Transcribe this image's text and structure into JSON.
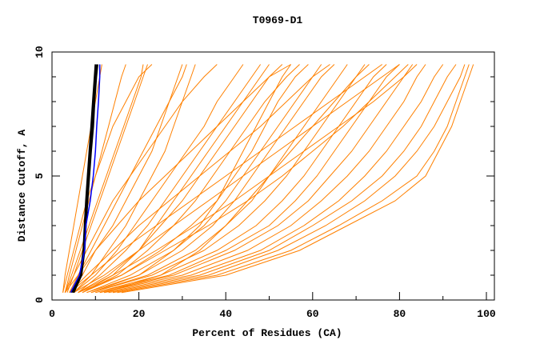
{
  "chart_data": {
    "type": "line",
    "title": "T0969-D1",
    "xlabel": "Percent of Residues (CA)",
    "ylabel": "Distance Cutoff, A",
    "xlim": [
      0,
      102
    ],
    "ylim": [
      0,
      10
    ],
    "xticks": [
      "0",
      "20",
      "40",
      "60",
      "80",
      "100"
    ],
    "xtick_values": [
      0,
      20,
      40,
      60,
      80,
      100
    ],
    "yticks": [
      "0",
      "5",
      "10"
    ],
    "ytick_values": [
      0,
      5,
      10
    ],
    "grid": false,
    "colors": {
      "models": "#ff8000",
      "highlight": "#000000",
      "reference": "#0000ff"
    },
    "cutoffs": [
      0.3,
      1,
      2,
      3,
      4,
      5,
      6,
      7,
      8,
      9,
      9.5
    ],
    "series_models": [
      [
        2.5,
        3,
        4,
        5,
        6,
        7,
        8,
        9,
        10,
        11,
        11.5
      ],
      [
        3,
        4,
        5.5,
        7,
        8.5,
        10,
        11.5,
        13,
        14.5,
        16,
        17
      ],
      [
        3,
        5,
        7,
        9,
        11,
        13,
        15,
        17,
        19,
        21,
        22
      ],
      [
        4,
        6,
        9,
        12,
        15,
        18,
        21,
        24,
        27,
        30,
        31
      ],
      [
        4,
        7,
        10,
        14,
        17,
        20,
        23,
        25,
        27,
        29,
        30
      ],
      [
        5,
        9,
        13,
        17,
        20,
        23,
        26,
        28,
        30,
        32,
        33
      ],
      [
        5,
        10,
        15,
        19,
        23,
        27,
        31,
        35,
        38,
        42,
        44
      ],
      [
        6,
        11,
        17,
        22,
        26,
        30,
        34,
        38,
        42,
        46,
        48
      ],
      [
        6,
        13,
        20,
        25,
        30,
        34,
        38,
        42,
        46,
        50,
        53
      ],
      [
        7,
        15,
        22,
        28,
        33,
        37,
        41,
        45,
        49,
        54,
        57
      ],
      [
        7,
        16,
        25,
        32,
        38,
        42,
        46,
        49,
        52,
        56,
        59
      ],
      [
        8,
        18,
        28,
        35,
        40,
        44,
        48,
        52,
        56,
        60,
        62
      ],
      [
        8,
        20,
        30,
        37,
        42,
        46,
        50,
        54,
        58,
        62,
        65
      ],
      [
        9,
        22,
        33,
        40,
        46,
        50,
        54,
        58,
        62,
        66,
        68
      ],
      [
        9,
        23,
        35,
        43,
        49,
        54,
        58,
        62,
        66,
        70,
        73
      ],
      [
        10,
        25,
        38,
        47,
        53,
        58,
        62,
        66,
        70,
        74,
        77
      ],
      [
        10,
        27,
        40,
        50,
        56,
        61,
        65,
        69,
        73,
        77,
        80
      ],
      [
        11,
        28,
        42,
        52,
        59,
        64,
        69,
        73,
        77,
        81,
        83
      ],
      [
        11,
        30,
        45,
        55,
        62,
        68,
        73,
        77,
        81,
        84,
        86
      ],
      [
        12,
        32,
        48,
        58,
        66,
        72,
        77,
        81,
        85,
        88,
        90
      ],
      [
        13,
        34,
        50,
        60,
        69,
        76,
        81,
        85,
        88,
        91,
        93
      ],
      [
        14,
        36,
        52,
        63,
        72,
        79,
        84,
        88,
        91,
        94,
        95
      ],
      [
        15,
        38,
        55,
        66,
        76,
        84,
        88,
        91,
        93,
        95,
        96
      ],
      [
        16,
        40,
        57,
        68,
        79,
        86,
        89,
        92,
        94,
        96,
        97
      ],
      [
        3,
        6,
        10,
        15,
        20,
        26,
        32,
        38,
        44,
        50,
        55
      ],
      [
        4,
        8,
        14,
        20,
        27,
        34,
        41,
        48,
        54,
        60,
        64
      ],
      [
        5,
        12,
        20,
        28,
        36,
        44,
        52,
        60,
        68,
        76,
        80
      ],
      [
        6,
        14,
        24,
        33,
        42,
        50,
        58,
        66,
        74,
        81,
        84
      ],
      [
        2.5,
        3.5,
        5,
        6.5,
        8,
        10,
        12,
        14,
        17,
        20,
        23
      ],
      [
        3,
        4.5,
        6.5,
        8.5,
        10.5,
        12.5,
        14.5,
        16.5,
        18.5,
        20.5,
        21
      ],
      [
        7,
        14,
        20,
        24,
        28,
        32,
        36,
        40,
        44,
        48,
        50
      ],
      [
        9,
        20,
        28,
        34,
        38,
        41,
        44,
        47,
        50,
        53,
        55
      ],
      [
        12,
        25,
        34,
        40,
        45,
        50,
        55,
        60,
        65,
        70,
        72
      ],
      [
        4,
        9,
        16,
        24,
        32,
        40,
        48,
        56,
        64,
        72,
        76
      ],
      [
        3.5,
        5,
        8,
        11,
        14,
        18,
        22,
        26,
        30,
        35,
        38
      ],
      [
        6,
        16,
        26,
        36,
        45,
        53,
        60,
        67,
        73,
        79,
        82
      ]
    ],
    "series_highlight": [
      [
        4.5,
        6.5,
        7.2,
        7.5,
        7.8,
        8.2,
        8.6,
        9,
        9.4,
        9.8,
        10
      ],
      [
        5,
        6.8,
        7.5,
        7.8,
        8.2,
        8.6,
        9,
        9.5,
        9.8,
        10.2,
        10.5
      ],
      [
        4.8,
        6.6,
        7.3,
        7.6,
        8,
        8.4,
        8.8,
        9.2,
        9.6,
        10,
        10.2
      ]
    ],
    "series_reference": [
      4.3,
      6.3,
      7.5,
      7.8,
      8.8,
      9.5,
      10,
      10.3,
      10.7,
      11,
      11
    ]
  }
}
